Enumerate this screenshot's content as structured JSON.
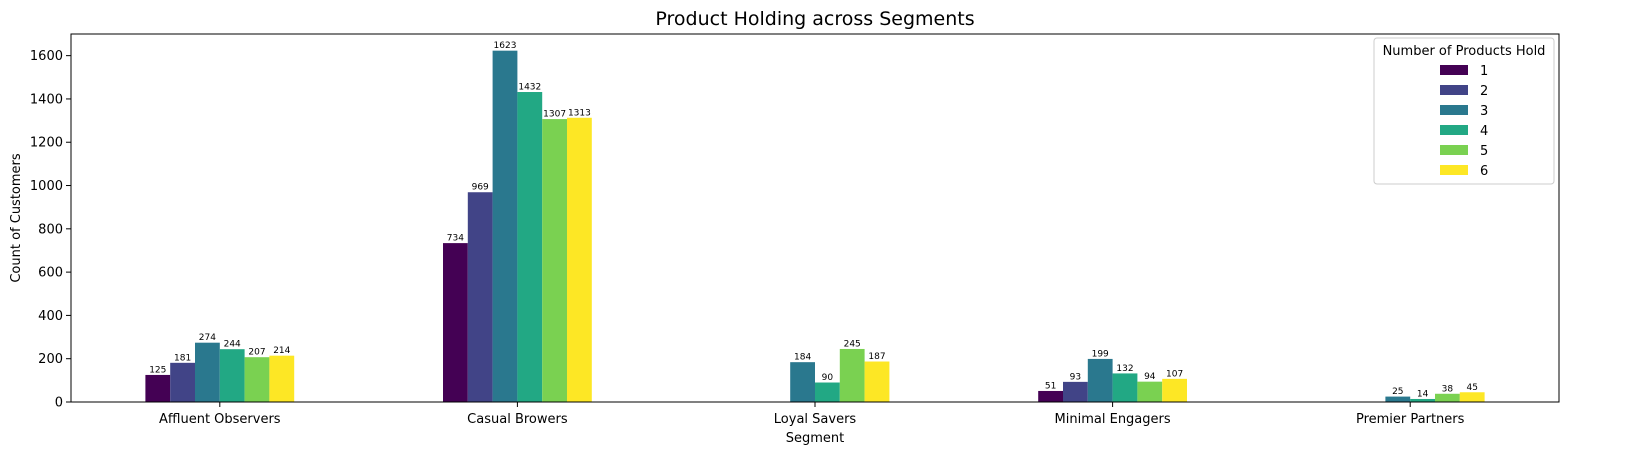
{
  "chart_data": {
    "type": "bar",
    "title": "Product Holding across Segments",
    "xlabel": "Segment",
    "ylabel": "Count of Customers",
    "ylim": [
      0,
      1700
    ],
    "yticks": [
      0,
      200,
      400,
      600,
      800,
      1000,
      1200,
      1400,
      1600
    ],
    "grid": false,
    "legend": {
      "title": "Number of Products Hold",
      "position": "top-right"
    },
    "categories": [
      "Affluent Observers",
      "Casual Browers",
      "Loyal Savers",
      "Minimal Engagers",
      "Premier Partners"
    ],
    "series": [
      {
        "name": "1",
        "color": "#440154",
        "values": [
          125,
          734,
          null,
          51,
          null
        ]
      },
      {
        "name": "2",
        "color": "#414487",
        "values": [
          181,
          969,
          null,
          93,
          null
        ]
      },
      {
        "name": "3",
        "color": "#2a788e",
        "values": [
          274,
          1623,
          184,
          199,
          25
        ]
      },
      {
        "name": "4",
        "color": "#22a884",
        "values": [
          244,
          1432,
          90,
          132,
          14
        ]
      },
      {
        "name": "5",
        "color": "#7ad151",
        "values": [
          207,
          1307,
          245,
          94,
          38
        ]
      },
      {
        "name": "6",
        "color": "#fde725",
        "values": [
          214,
          1313,
          187,
          107,
          45
        ]
      }
    ]
  }
}
